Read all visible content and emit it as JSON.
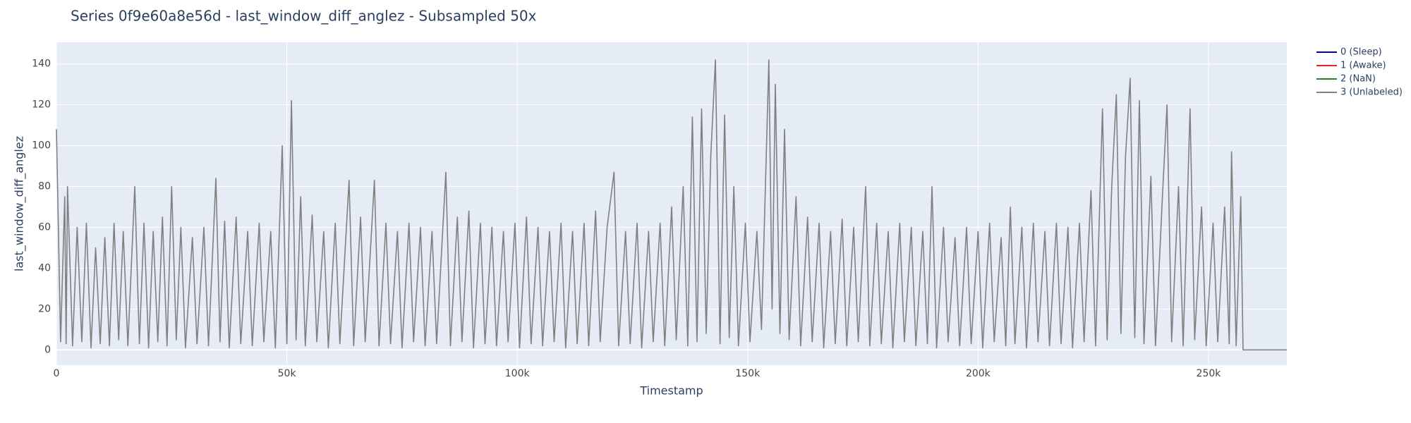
{
  "chart_data": {
    "type": "line",
    "title": "Series 0f9e60a8e56d - last_window_diff_anglez - Subsampled 50x",
    "x_label": "Timestamp",
    "y_label": "last_window_diff_anglez",
    "x": [
      0,
      900,
      1800,
      2100,
      2400,
      3500,
      4500,
      5500,
      6500,
      7500,
      8500,
      9500,
      10500,
      11500,
      12500,
      13500,
      14500,
      15500,
      17000,
      18000,
      19000,
      20000,
      21000,
      22000,
      23000,
      24000,
      25000,
      26000,
      27000,
      28000,
      29500,
      30500,
      32000,
      33000,
      34600,
      35500,
      36500,
      37500,
      39000,
      40000,
      41500,
      42500,
      44000,
      45000,
      46500,
      47500,
      49000,
      50000,
      51000,
      52000,
      53000,
      54000,
      55500,
      56500,
      58000,
      59000,
      60500,
      61500,
      63500,
      64500,
      66000,
      67000,
      69000,
      70000,
      71500,
      72500,
      74000,
      75000,
      76500,
      77500,
      79000,
      80000,
      81500,
      82500,
      84500,
      85500,
      87000,
      88000,
      89500,
      90500,
      92000,
      93000,
      94500,
      95500,
      97000,
      98000,
      99500,
      100500,
      102000,
      103000,
      104500,
      105500,
      107000,
      108000,
      109500,
      110500,
      112000,
      113000,
      114500,
      115500,
      117000,
      118000,
      119500,
      121000,
      122000,
      123500,
      124500,
      126000,
      127000,
      128500,
      129500,
      131000,
      132000,
      133500,
      134500,
      136000,
      137000,
      138000,
      139000,
      140000,
      141000,
      142000,
      143000,
      144000,
      145000,
      146000,
      147000,
      148000,
      149500,
      150500,
      152000,
      153000,
      154600,
      155300,
      156000,
      157000,
      158000,
      159000,
      160500,
      161500,
      163000,
      164000,
      165500,
      166500,
      168000,
      169000,
      170500,
      171500,
      173000,
      174000,
      175600,
      176500,
      178000,
      179000,
      180500,
      181500,
      183000,
      184000,
      185500,
      186500,
      188000,
      189000,
      190000,
      191000,
      192500,
      193500,
      195000,
      196000,
      197500,
      198500,
      200000,
      201000,
      202500,
      203500,
      205000,
      206000,
      207000,
      208000,
      209500,
      210500,
      212000,
      213000,
      214500,
      215500,
      217000,
      218000,
      219500,
      220500,
      222000,
      223000,
      224500,
      225500,
      227000,
      228000,
      229000,
      230000,
      231000,
      232000,
      233000,
      234000,
      235000,
      236000,
      237500,
      238500,
      240000,
      241000,
      242000,
      243500,
      244500,
      246000,
      247000,
      248500,
      249500,
      251000,
      252000,
      253500,
      254500,
      255000,
      256000,
      257000,
      257500,
      267000
    ],
    "series": [
      {
        "name": "0 (Sleep)",
        "color": "#0000b3"
      },
      {
        "name": "1 (Awake)",
        "color": "#e5202a"
      },
      {
        "name": "2 (NaN)",
        "color": "#1f8a1f"
      },
      {
        "name": "3 (Unlabeled)",
        "color": "#808080",
        "values": [
          108,
          4,
          75,
          3,
          80,
          2,
          60,
          4,
          62,
          1,
          50,
          3,
          55,
          2,
          62,
          5,
          58,
          2,
          80,
          3,
          62,
          1,
          58,
          4,
          65,
          2,
          80,
          5,
          60,
          1,
          55,
          3,
          60,
          2,
          84,
          4,
          63,
          1,
          65,
          3,
          58,
          2,
          62,
          4,
          58,
          1,
          100,
          3,
          122,
          5,
          75,
          2,
          66,
          4,
          58,
          1,
          62,
          3,
          83,
          2,
          65,
          4,
          83,
          2,
          62,
          3,
          58,
          1,
          62,
          4,
          60,
          2,
          58,
          3,
          87,
          2,
          65,
          4,
          68,
          1,
          62,
          3,
          60,
          2,
          58,
          4,
          62,
          1,
          65,
          3,
          60,
          2,
          58,
          4,
          62,
          1,
          58,
          3,
          62,
          2,
          68,
          4,
          60,
          87,
          2,
          58,
          3,
          62,
          1,
          58,
          4,
          62,
          2,
          70,
          5,
          80,
          2,
          114,
          4,
          118,
          8,
          95,
          142,
          3,
          115,
          6,
          80,
          2,
          62,
          4,
          58,
          10,
          142,
          20,
          130,
          8,
          108,
          5,
          75,
          2,
          65,
          4,
          62,
          1,
          58,
          3,
          64,
          2,
          60,
          4,
          80,
          2,
          62,
          3,
          58,
          1,
          62,
          4,
          60,
          2,
          58,
          3,
          80,
          1,
          60,
          4,
          55,
          2,
          60,
          3,
          58,
          1,
          62,
          4,
          55,
          2,
          70,
          3,
          60,
          1,
          62,
          4,
          58,
          2,
          62,
          3,
          60,
          1,
          62,
          4,
          78,
          2,
          118,
          5,
          80,
          125,
          8,
          95,
          133,
          6,
          122,
          3,
          85,
          2,
          75,
          120,
          4,
          80,
          2,
          118,
          5,
          70,
          2,
          62,
          4,
          70,
          3,
          97,
          2,
          75,
          0,
          0
        ]
      }
    ],
    "xlim": [
      0,
      267000
    ],
    "ylim": [
      -7.5,
      150.6
    ],
    "xticks": [
      0,
      {
        "value": 50000,
        "label": "50k"
      },
      {
        "value": 100000,
        "label": "100k"
      },
      {
        "value": 150000,
        "label": "150k"
      },
      {
        "value": 200000,
        "label": "200k"
      },
      {
        "value": 250000,
        "label": "250k"
      }
    ],
    "yticks": [
      0,
      20,
      40,
      60,
      80,
      100,
      120,
      140
    ],
    "grid": true,
    "legend": "right"
  }
}
